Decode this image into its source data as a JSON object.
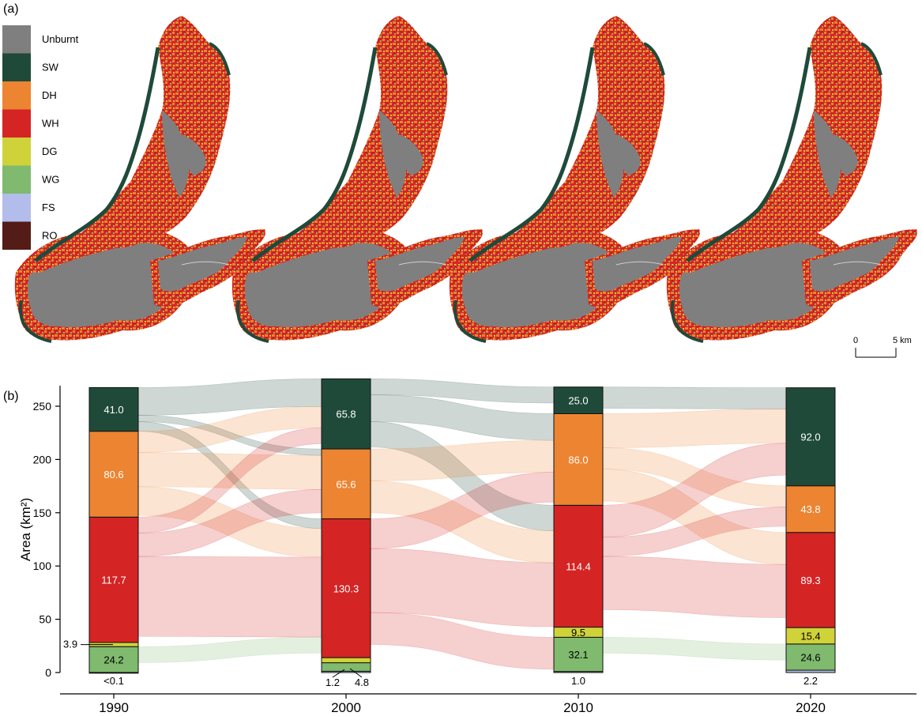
{
  "panel_labels": {
    "a": "(a)",
    "b": "(b)"
  },
  "legend": [
    {
      "label": "Unburnt",
      "color": "#7f7f7f"
    },
    {
      "label": "SW",
      "color": "#1f4a3a"
    },
    {
      "label": "DH",
      "color": "#ec8432"
    },
    {
      "label": "WH",
      "color": "#d42424"
    },
    {
      "label": "DG",
      "color": "#d0d23a"
    },
    {
      "label": "WG",
      "color": "#7fba6e"
    },
    {
      "label": "FS",
      "color": "#b3bdec"
    },
    {
      "label": "RO",
      "color": "#531c16"
    }
  ],
  "scale_bar": {
    "start": "0",
    "end": "5 km"
  },
  "chart_data": {
    "type": "alluvial",
    "ylabel": "Area (km²)",
    "ylim": [
      0,
      265
    ],
    "yticks": [
      0,
      50,
      100,
      150,
      200,
      250
    ],
    "categories": [
      "1990",
      "2000",
      "2010",
      "2020"
    ],
    "series": [
      {
        "name": "SW",
        "values": [
          41.0,
          65.8,
          25.0,
          92.0
        ]
      },
      {
        "name": "DH",
        "values": [
          80.6,
          65.6,
          86.0,
          43.8
        ]
      },
      {
        "name": "WH",
        "values": [
          117.7,
          130.3,
          114.4,
          89.3
        ]
      },
      {
        "name": "DG",
        "values": [
          3.9,
          4.8,
          9.5,
          15.4
        ]
      },
      {
        "name": "WG",
        "values": [
          24.2,
          8.0,
          32.1,
          24.6
        ]
      },
      {
        "name": "FS",
        "values": [
          0.1,
          1.2,
          1.0,
          2.2
        ]
      }
    ],
    "data_labels": [
      {
        "year": "1990",
        "class": "SW",
        "text": "41.0"
      },
      {
        "year": "1990",
        "class": "DH",
        "text": "80.6"
      },
      {
        "year": "1990",
        "class": "WH",
        "text": "117.7"
      },
      {
        "year": "1990",
        "class": "DG",
        "text": "3.9"
      },
      {
        "year": "1990",
        "class": "WG",
        "text": "24.2"
      },
      {
        "year": "1990",
        "class": "FS",
        "text": "<0.1"
      },
      {
        "year": "2000",
        "class": "SW",
        "text": "65.8"
      },
      {
        "year": "2000",
        "class": "DH",
        "text": "65.6"
      },
      {
        "year": "2000",
        "class": "WH",
        "text": "130.3"
      },
      {
        "year": "2000",
        "class": "DG",
        "text": "4.8"
      },
      {
        "year": "2000",
        "class": "FS",
        "text": "1.2"
      },
      {
        "year": "2010",
        "class": "SW",
        "text": "25.0"
      },
      {
        "year": "2010",
        "class": "DH",
        "text": "86.0"
      },
      {
        "year": "2010",
        "class": "WH",
        "text": "114.4"
      },
      {
        "year": "2010",
        "class": "DG",
        "text": "9.5"
      },
      {
        "year": "2010",
        "class": "WG",
        "text": "32.1"
      },
      {
        "year": "2010",
        "class": "FS",
        "text": "1.0"
      },
      {
        "year": "2020",
        "class": "SW",
        "text": "92.0"
      },
      {
        "year": "2020",
        "class": "DH",
        "text": "43.8"
      },
      {
        "year": "2020",
        "class": "WH",
        "text": "89.3"
      },
      {
        "year": "2020",
        "class": "DG",
        "text": "15.4"
      },
      {
        "year": "2020",
        "class": "WG",
        "text": "24.6"
      },
      {
        "year": "2020",
        "class": "FS",
        "text": "2.2"
      }
    ],
    "flows": [
      {
        "from_year": "1990",
        "from": "SW",
        "to": "SW",
        "value": 26
      },
      {
        "from_year": "1990",
        "from": "SW",
        "to": "DH",
        "value": 6
      },
      {
        "from_year": "1990",
        "from": "SW",
        "to": "WH",
        "value": 9
      },
      {
        "from_year": "1990",
        "from": "DH",
        "to": "SW",
        "value": 20
      },
      {
        "from_year": "1990",
        "from": "DH",
        "to": "DH",
        "value": 32
      },
      {
        "from_year": "1990",
        "from": "DH",
        "to": "WH",
        "value": 27
      },
      {
        "from_year": "1990",
        "from": "WH",
        "to": "SW",
        "value": 15
      },
      {
        "from_year": "1990",
        "from": "WH",
        "to": "DH",
        "value": 22
      },
      {
        "from_year": "1990",
        "from": "WH",
        "to": "WH",
        "value": 75
      },
      {
        "from_year": "1990",
        "from": "WG",
        "to": "WH",
        "value": 15
      },
      {
        "from_year": "2000",
        "from": "SW",
        "to": "SW",
        "value": 15
      },
      {
        "from_year": "2000",
        "from": "SW",
        "to": "DH",
        "value": 25
      },
      {
        "from_year": "2000",
        "from": "SW",
        "to": "WH",
        "value": 24
      },
      {
        "from_year": "2000",
        "from": "DH",
        "to": "DH",
        "value": 30
      },
      {
        "from_year": "2000",
        "from": "DH",
        "to": "WH",
        "value": 30
      },
      {
        "from_year": "2000",
        "from": "WH",
        "to": "DH",
        "value": 28
      },
      {
        "from_year": "2000",
        "from": "WH",
        "to": "WH",
        "value": 60
      },
      {
        "from_year": "2000",
        "from": "WH",
        "to": "WG",
        "value": 30
      },
      {
        "from_year": "2010",
        "from": "SW",
        "to": "SW",
        "value": 20
      },
      {
        "from_year": "2010",
        "from": "DH",
        "to": "SW",
        "value": 32
      },
      {
        "from_year": "2010",
        "from": "DH",
        "to": "DH",
        "value": 20
      },
      {
        "from_year": "2010",
        "from": "DH",
        "to": "WH",
        "value": 30
      },
      {
        "from_year": "2010",
        "from": "WH",
        "to": "SW",
        "value": 30
      },
      {
        "from_year": "2010",
        "from": "WH",
        "to": "DH",
        "value": 18
      },
      {
        "from_year": "2010",
        "from": "WH",
        "to": "WH",
        "value": 50
      },
      {
        "from_year": "2010",
        "from": "WG",
        "to": "WG",
        "value": 15
      }
    ]
  }
}
